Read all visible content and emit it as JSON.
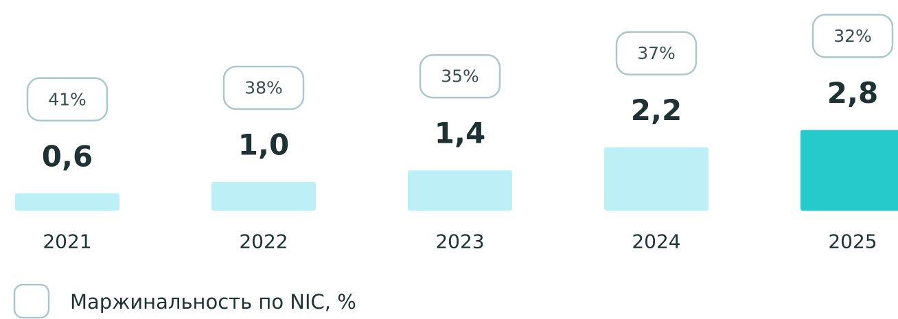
{
  "chart_data": {
    "type": "bar",
    "categories": [
      "2021",
      "2022",
      "2023",
      "2024",
      "2025"
    ],
    "values": [
      0.6,
      1.0,
      1.4,
      2.2,
      2.8
    ],
    "value_labels": [
      "0,6",
      "1,0",
      "1,4",
      "2,2",
      "2,8"
    ],
    "colors": [
      "#bdf0f6",
      "#bdf0f6",
      "#bdf0f6",
      "#bdf0f6",
      "#26caca"
    ],
    "margin_values": [
      41,
      38,
      35,
      37,
      32
    ],
    "margin_labels": [
      "41%",
      "38%",
      "35%",
      "37%",
      "32%"
    ],
    "legend": "Маржинальность по NIC, %"
  }
}
